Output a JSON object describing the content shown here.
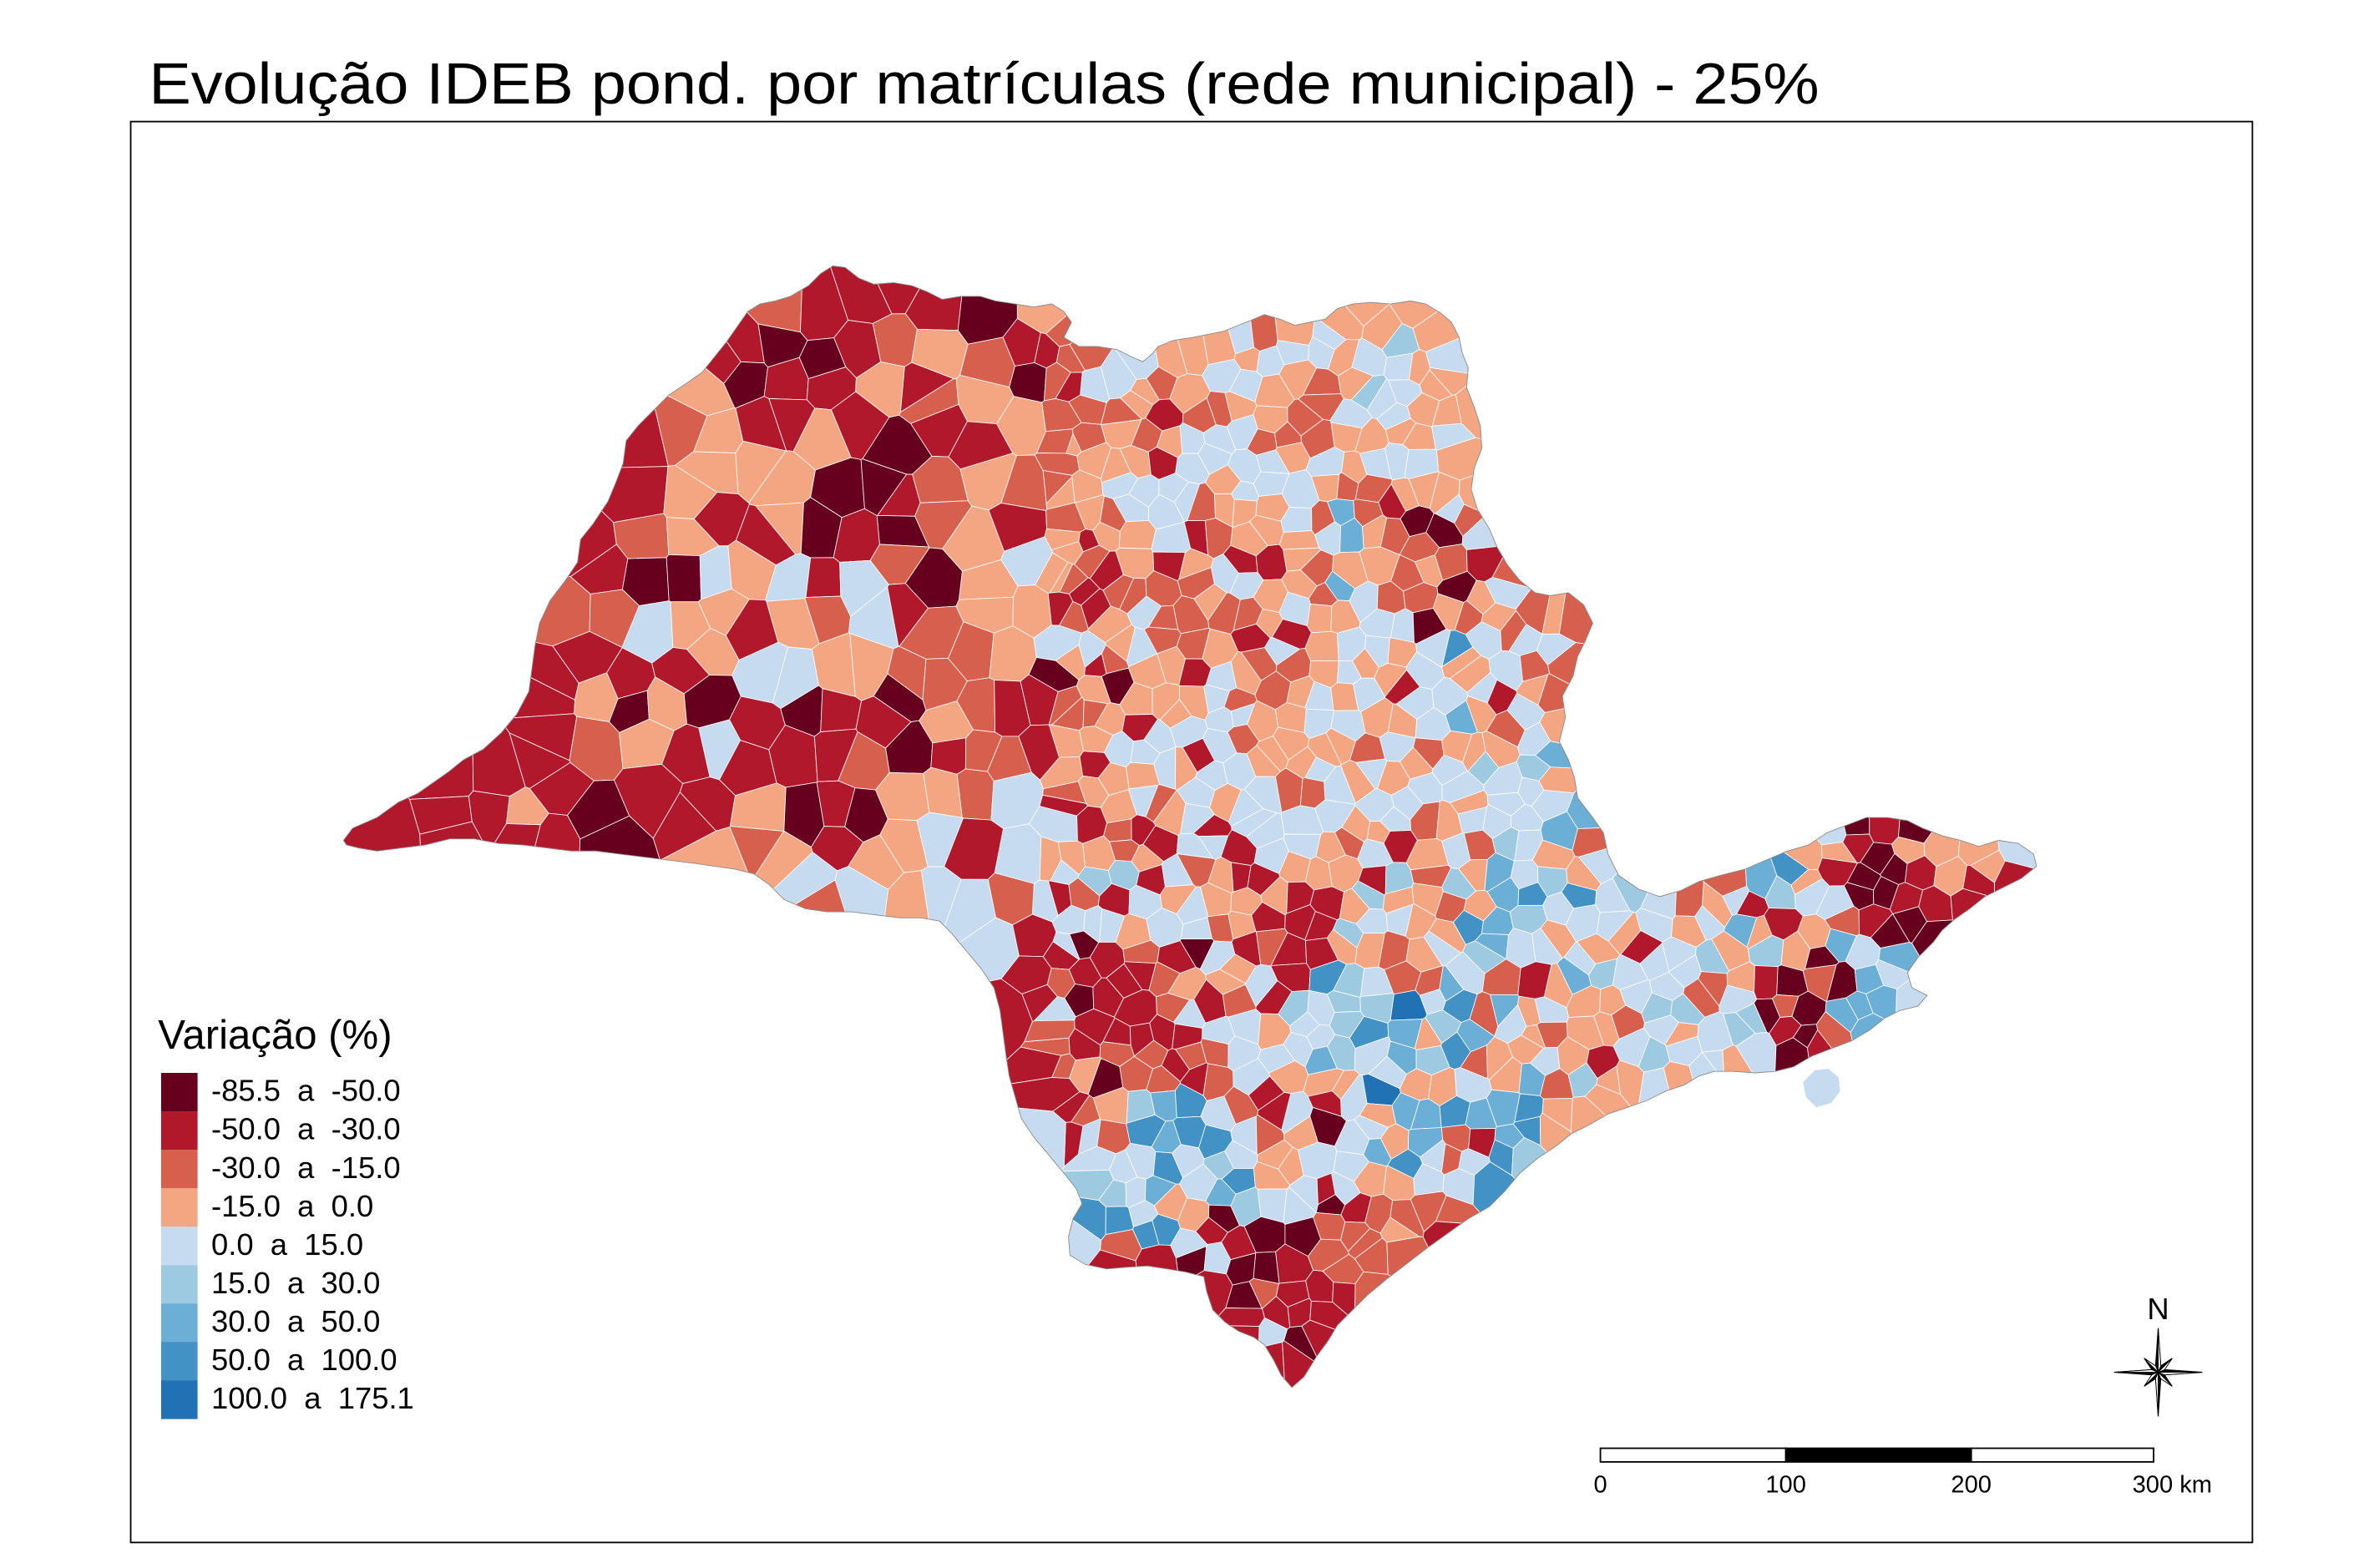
{
  "title": "Evolução IDEB pond. por matrículas (rede municipal) - 25%",
  "legend": {
    "title": "Variação (%)",
    "items": [
      {
        "label": "-85.5  a  -50.0",
        "color": "#67001f"
      },
      {
        "label": "-50.0  a  -30.0",
        "color": "#b2182b"
      },
      {
        "label": "-30.0  a  -15.0",
        "color": "#d6604d"
      },
      {
        "label": "-15.0  a  0.0",
        "color": "#f4a582"
      },
      {
        "label": "0.0  a  15.0",
        "color": "#c6dbef"
      },
      {
        "label": "15.0  a  30.0",
        "color": "#9ecae1"
      },
      {
        "label": "30.0  a  50.0",
        "color": "#6baed6"
      },
      {
        "label": "50.0  a  100.0",
        "color": "#4292c6"
      },
      {
        "label": "100.0  a  175.1",
        "color": "#2171b5"
      }
    ]
  },
  "north_arrow": {
    "label": "N",
    "icon": "compass-rose-icon"
  },
  "scale_bar": {
    "labels": [
      "0",
      "100",
      "200",
      "300 km"
    ]
  }
}
